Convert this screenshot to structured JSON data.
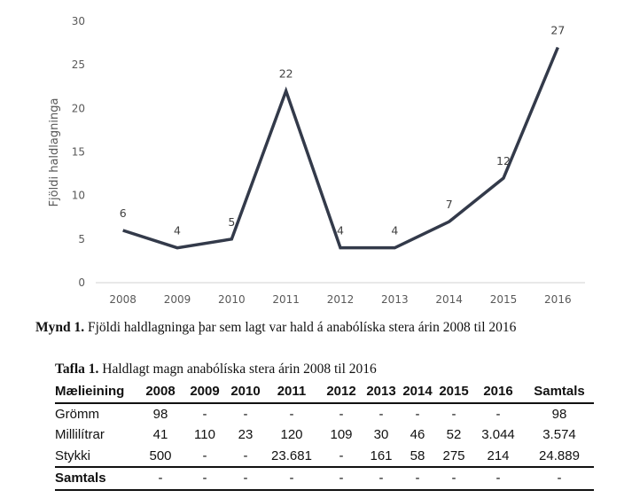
{
  "chart_data": {
    "type": "line",
    "x": [
      "2008",
      "2009",
      "2010",
      "2011",
      "2012",
      "2013",
      "2014",
      "2015",
      "2016"
    ],
    "series": [
      {
        "values": [
          6,
          4,
          5,
          22,
          4,
          4,
          7,
          12,
          27
        ]
      }
    ],
    "ylabel": "Fjöldi haldlagninga",
    "ylim": [
      0,
      30
    ],
    "yticks": [
      "0",
      "5",
      "10",
      "15",
      "20",
      "25",
      "30"
    ],
    "grid": false,
    "line_color": "#333a4a"
  },
  "figure_caption": {
    "label": "Mynd 1.",
    "text": " Fjöldi haldlagninga þar sem lagt var hald á anabólíska stera árin 2008 til 2016"
  },
  "table": {
    "caption_label": "Tafla 1.",
    "caption_text": " Haldlagt magn anabólíska stera árin 2008 til 2016",
    "headers": [
      "Mælieining",
      "2008",
      "2009",
      "2010",
      "2011",
      "2012",
      "2013",
      "2014",
      "2015",
      "2016",
      "Samtals"
    ],
    "rows": [
      [
        "Grömm",
        "98",
        "-",
        "-",
        "-",
        "-",
        "-",
        "-",
        "-",
        "-",
        "98"
      ],
      [
        "Millilítrar",
        "41",
        "110",
        "23",
        "120",
        "109",
        "30",
        "46",
        "52",
        "3.044",
        "3.574"
      ],
      [
        "Stykki",
        "500",
        "-",
        "-",
        "23.681",
        "-",
        "161",
        "58",
        "275",
        "214",
        "24.889"
      ]
    ],
    "total_row": [
      "Samtals",
      "-",
      "-",
      "-",
      "-",
      "-",
      "-",
      "-",
      "-",
      "-",
      "-"
    ]
  }
}
